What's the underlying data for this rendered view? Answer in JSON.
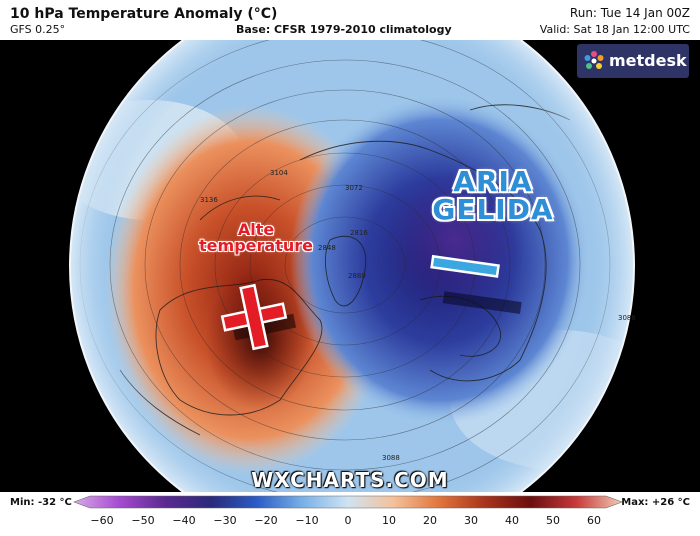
{
  "header": {
    "title": "10 hPa Temperature Anomaly (°C)",
    "model": "GFS 0.25°",
    "base": "Base: CFSR 1979-2010 climatology",
    "run": "Run: Tue 14 Jan 00Z",
    "valid": "Valid: Sat 18 Jan 12:00 UTC"
  },
  "logo": {
    "name": "metdesk",
    "icon": "flower-icon"
  },
  "annotations": {
    "warm_line1": "Alte",
    "warm_line2": "temperature",
    "warm_symbol": "plus",
    "cold_line1": "ARIA",
    "cold_line2": "GELIDA",
    "cold_symbol": "minus"
  },
  "contour_labels": [
    "3104",
    "3136",
    "3072",
    "2848",
    "2816",
    "2880",
    "3088",
    "3088"
  ],
  "watermark": "WXCHARTS.COM",
  "legend": {
    "min_label": "Min: -32 °C",
    "max_label": "Max: +26 °C",
    "ticks": [
      -60,
      -50,
      -40,
      -30,
      -20,
      -10,
      0,
      10,
      20,
      30,
      40,
      50,
      60
    ],
    "colors": [
      "#d8a9e6",
      "#a54bd0",
      "#5a2a8f",
      "#2a2a7a",
      "#2b5bc4",
      "#79b1e6",
      "#cfe3f3",
      "#f4c19a",
      "#e0743c",
      "#a8341c",
      "#6b0e0e",
      "#c73b3b",
      "#f2cbb5"
    ]
  }
}
